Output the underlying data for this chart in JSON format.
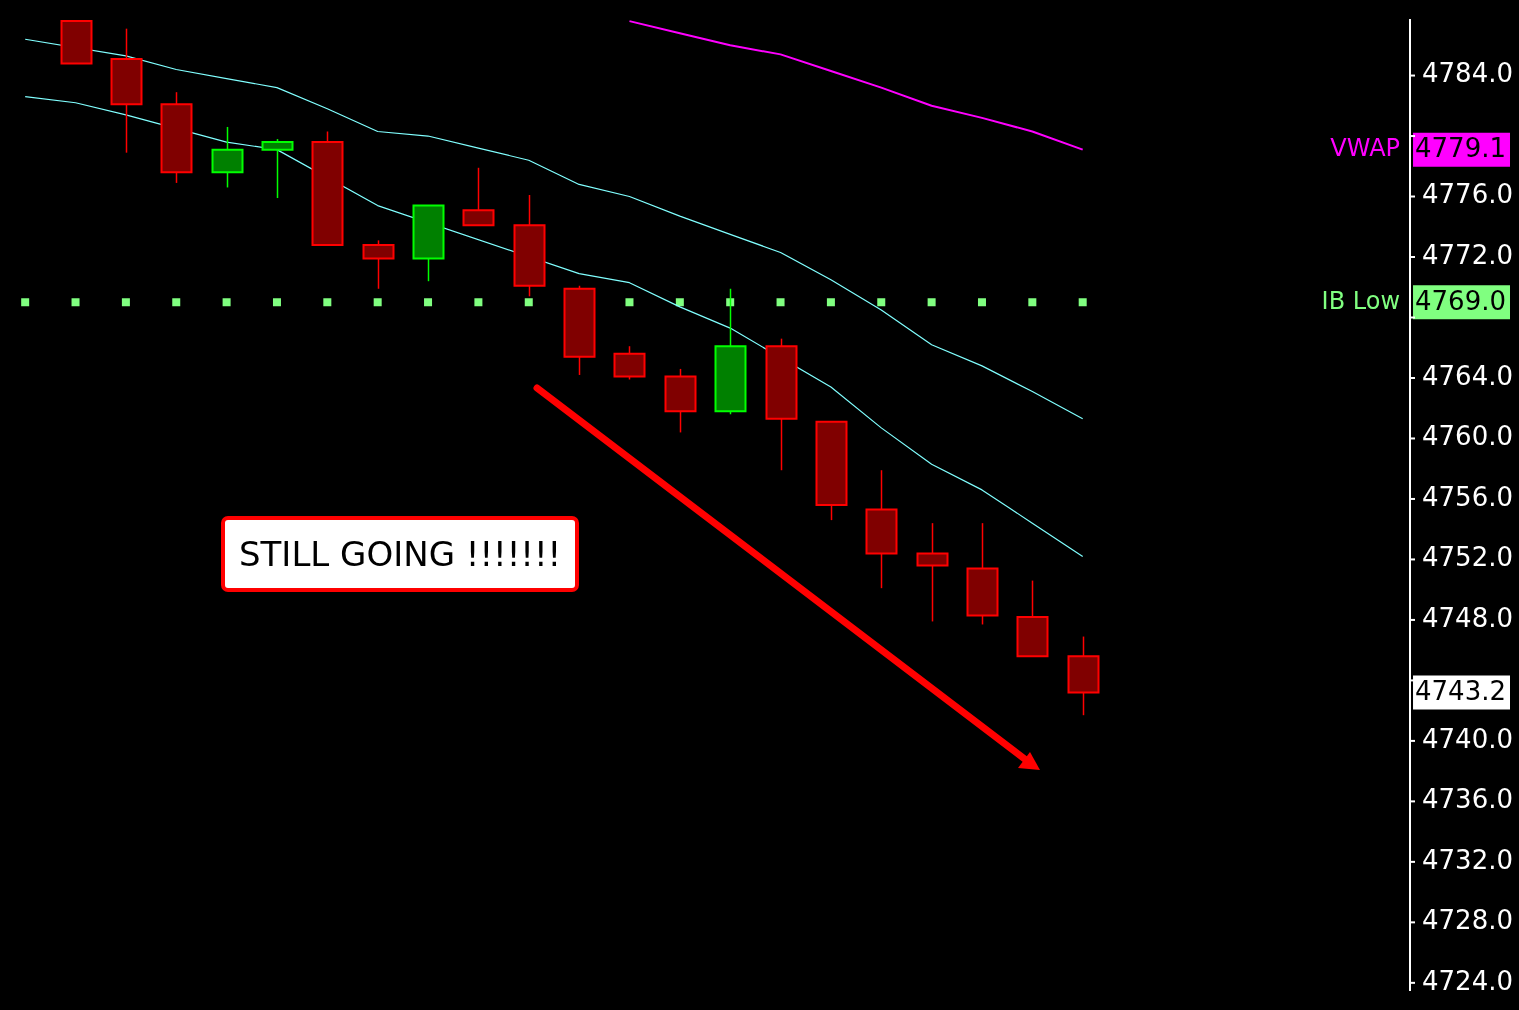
{
  "chart_data": {
    "type": "candlestick",
    "categories": [
      null,
      null,
      null,
      null,
      null,
      null,
      null,
      null,
      null,
      null,
      null,
      null,
      null,
      null,
      null,
      null,
      null,
      null,
      null,
      null,
      null,
      null,
      null,
      null,
      null,
      null,
      null,
      null
    ],
    "ohlc": [
      null,
      [
        4787.6,
        4787.6,
        4784.8,
        4784.8
      ],
      [
        4785.1,
        4787.1,
        4778.9,
        4782.1
      ],
      [
        4782.1,
        4782.9,
        4776.9,
        4777.6
      ],
      [
        4777.6,
        4780.6,
        4776.6,
        4779.1
      ],
      [
        4779.1,
        4779.8,
        4775.9,
        4779.6
      ],
      [
        4779.6,
        4780.3,
        4772.8,
        4772.8
      ],
      [
        4772.8,
        4773.1,
        4769.9,
        4771.9
      ],
      [
        4771.9,
        4775.4,
        4770.4,
        4775.4
      ],
      [
        4775.1,
        4777.9,
        4774.1,
        4774.1
      ],
      [
        4774.1,
        4776.1,
        4769.4,
        4770.1
      ],
      [
        4769.9,
        4770.1,
        4764.2,
        4765.4
      ],
      [
        4765.6,
        4766.1,
        4763.9,
        4764.1
      ],
      [
        4764.1,
        4764.6,
        4760.4,
        4761.8
      ],
      [
        4761.8,
        4769.9,
        4761.6,
        4766.1
      ],
      [
        4766.1,
        4766.6,
        4757.9,
        4761.3
      ],
      [
        4761.1,
        4761.1,
        4754.6,
        4755.6
      ],
      [
        4755.3,
        4757.9,
        4750.1,
        4752.4
      ],
      [
        4752.4,
        4754.4,
        4747.9,
        4751.6
      ],
      [
        4751.4,
        4754.4,
        4747.7,
        4748.3
      ],
      [
        4748.2,
        4750.6,
        4745.6,
        4745.6
      ],
      [
        4745.6,
        4746.9,
        4741.7,
        4743.2
      ],
      null,
      null,
      null,
      null,
      null,
      null
    ],
    "value_labels": [
      null,
      null,
      null,
      null,
      null,
      null,
      null,
      null,
      null,
      null,
      null,
      null,
      null,
      null,
      null,
      null,
      null,
      null,
      null,
      null,
      null,
      "4743.2",
      null,
      null,
      null,
      null,
      null,
      null
    ],
    "colors": [
      null,
      "#800000",
      "#800000",
      "#800000",
      "#008000",
      "#008000",
      "#800000",
      "#800000",
      "#008000",
      "#800000",
      "#800000",
      "#800000",
      "#800000",
      "#800000",
      "#008000",
      "#800000",
      "#800000",
      "#800000",
      "#800000",
      "#800000",
      "#800000",
      "#800000",
      null,
      null,
      null,
      null,
      null,
      null
    ],
    "series": [
      {
        "type": "line",
        "color": "#80ffff",
        "values": [
          4786.4,
          null,
          4785.3,
          4784.4,
          4783.8,
          4783.2,
          4781.8,
          4780.3,
          4780.0,
          4779.2,
          4778.4,
          4776.8,
          4776.0,
          4774.7,
          4773.5,
          4772.3,
          4770.5,
          4768.5,
          4766.2,
          4764.8,
          4763.1,
          4761.3,
          null,
          null,
          null,
          null,
          null,
          null
        ]
      },
      {
        "type": "line",
        "color": "#80ffff",
        "values": [
          4782.6,
          4782.2,
          4781.4,
          null,
          4779.6,
          4779.1,
          null,
          4775.4,
          null,
          null,
          null,
          4770.9,
          4770.3,
          4768.7,
          4767.3,
          null,
          4763.4,
          4760.7,
          4758.3,
          4756.6,
          4754.4,
          4752.2,
          null,
          null,
          null,
          null,
          null,
          null
        ]
      },
      {
        "type": "line",
        "name": "VWAP",
        "color": "#ff00ff",
        "values": [
          null,
          null,
          null,
          null,
          null,
          null,
          null,
          null,
          null,
          null,
          null,
          null,
          4787.6,
          4786.8,
          4786.0,
          4785.4,
          4784.3,
          4783.2,
          4782.0,
          4781.2,
          4780.3,
          4779.1,
          null,
          null,
          null,
          null,
          null,
          null
        ]
      }
    ],
    "ylim": [
      4723.5,
      4787.7
    ],
    "yticks": [
      {
        "value": 4724,
        "label": "4724.0"
      },
      {
        "value": 4728,
        "label": "4728.0"
      },
      {
        "value": 4732,
        "label": "4732.0"
      },
      {
        "value": 4736,
        "label": "4736.0"
      },
      {
        "value": 4740,
        "label": "4740.0"
      },
      {
        "value": 4744,
        "label": null
      },
      {
        "value": 4748,
        "label": "4748.0"
      },
      {
        "value": 4752,
        "label": "4752.0"
      },
      {
        "value": 4756,
        "label": "4756.0"
      },
      {
        "value": 4760,
        "label": "4760.0"
      },
      {
        "value": 4764,
        "label": "4764.0"
      },
      {
        "value": 4768,
        "label": null
      },
      {
        "value": 4772,
        "label": "4772.0"
      },
      {
        "value": 4776,
        "label": "4776.0"
      },
      {
        "value": 4780,
        "label": null
      },
      {
        "value": 4784,
        "label": "4784.0"
      }
    ],
    "ref_lines": [
      {
        "axis": "y",
        "value": 4769.0,
        "label": "IB Low",
        "color": "#80ff80",
        "line_style": "dotted"
      }
    ],
    "annotations": [
      "STILL GOING !!!!!!!",
      "4779.1",
      "4769.0"
    ],
    "marker": "none",
    "line_style": "solid",
    "grid": false,
    "tick_labels": "y"
  }
}
